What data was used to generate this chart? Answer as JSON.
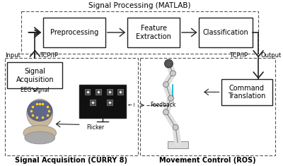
{
  "title": "Signal Processing (MATLAB)",
  "bg_color": "#ffffff",
  "bottom_left_label": "Signal Acquisition (CURRY 8)",
  "bottom_right_label": "Movement Control (ROS)",
  "eeg_signal": "EEG signal",
  "flicker": "Flicker",
  "feedback": "Feedback",
  "input_label": "Input",
  "output_label": "Output",
  "tcp_left": "TCP/IP",
  "tcp_right": "TCP/IP"
}
